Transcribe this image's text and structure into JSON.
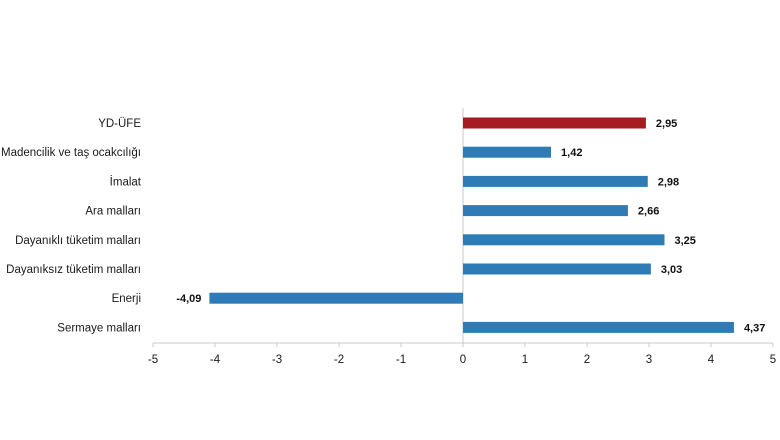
{
  "chart_data": {
    "type": "bar",
    "orientation": "horizontal",
    "title": "",
    "xlabel": "",
    "ylabel": "",
    "categories": [
      "YD-ÜFE",
      "Madencilik ve taş ocakcılığı",
      "İmalat",
      "Ara malları",
      "Dayanıklı tüketim malları",
      "Dayanıksız tüketim malları",
      "Enerji",
      "Sermaye malları"
    ],
    "values": [
      2.95,
      1.42,
      2.98,
      2.66,
      3.25,
      3.03,
      -4.09,
      4.37
    ],
    "value_labels": [
      "2,95",
      "1,42",
      "2,98",
      "2,66",
      "3,25",
      "3,03",
      "-4,09",
      "4,37"
    ],
    "xlim": [
      -5,
      5
    ],
    "x_ticks": [
      -5,
      -4,
      -3,
      -2,
      -1,
      0,
      1,
      2,
      3,
      4,
      5
    ],
    "x_tick_labels": [
      "-5",
      "-4",
      "-3",
      "-2",
      "-1",
      "0",
      "1",
      "2",
      "3",
      "4",
      "5"
    ],
    "grid": false,
    "legend": "none",
    "colors": {
      "highlight": "#a51c22",
      "bar": "#2f7bb6",
      "axis": "#c8c8c8"
    },
    "highlight_index": 0
  }
}
